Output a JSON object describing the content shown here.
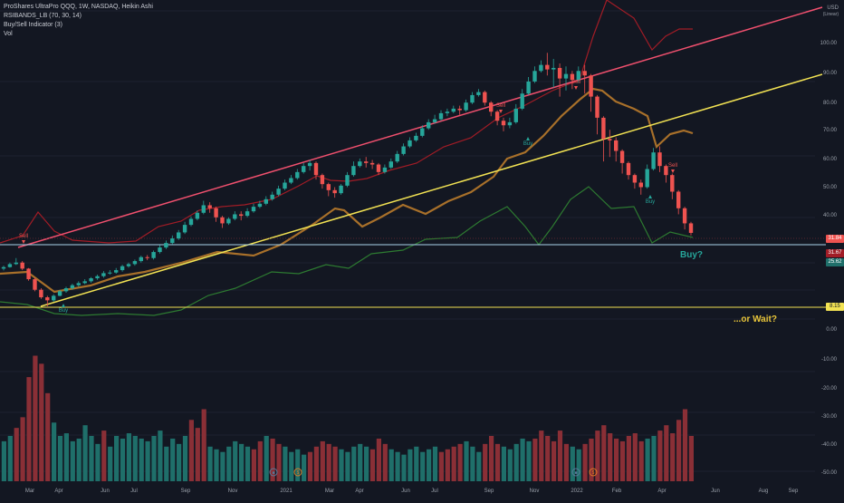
{
  "legend": {
    "line1": "ProShares UltraPro QQQ, 1W, NASDAQ, Heikin Ashi",
    "line2": "RSIBANDS_LB (70, 30, 14)",
    "line3": "Buy/Sell Indicator (3)",
    "line4": "Vol"
  },
  "annotations": {
    "buy": "Buy?",
    "wait": "...or Wait?"
  },
  "colors": {
    "background": "#131722",
    "up_candle": "#26a69a",
    "down_candle": "#ef5350",
    "upper_trend": "#f0506e",
    "lower_trend": "#f2e253",
    "band_high": "#a11c26",
    "band_mid": "#a8702a",
    "band_low": "#2d7a31",
    "support_line": "#a9d3ea",
    "volume_up": "#1f6f6a",
    "volume_down": "#8a2f36"
  },
  "chart_data": {
    "type": "candlestick",
    "x_tick_labels": [
      "Mar",
      "Apr",
      "Jun",
      "Jul",
      "Sep",
      "Nov",
      "2021",
      "Mar",
      "Apr",
      "Jun",
      "Jul",
      "Sep",
      "Nov",
      "2022",
      "Feb",
      "Apr",
      "Jun",
      "Aug",
      "Sep"
    ],
    "y_axis": {
      "unit_label": "USD",
      "scale_label": "(Linear)",
      "ticks": [
        "100.00",
        "90.00",
        "80.00",
        "70.00",
        "60.00",
        "50.00",
        "40.00",
        "8.15",
        "0.00",
        "-10.00",
        "-20.00",
        "-30.00",
        "-40.00",
        "-50.00"
      ]
    },
    "price_tags": [
      {
        "value": "8.15",
        "color": "#f2e253",
        "text_color": "#131722"
      },
      {
        "value": "31.84",
        "color": "#ef5350",
        "text_color": "#ffffff"
      },
      {
        "value": "31.67",
        "color": "#a11c26",
        "text_color": "#ffffff"
      },
      {
        "value": "25.62",
        "color": "#1f6f6a",
        "text_color": "#ffffff"
      }
    ],
    "signals": [
      {
        "label": "Sell",
        "type": "sell"
      },
      {
        "label": "Buy",
        "type": "buy"
      },
      {
        "label": "Sell",
        "type": "sell"
      },
      {
        "label": "Buy",
        "type": "buy"
      },
      {
        "label": "Sell",
        "type": "sell"
      },
      {
        "label": "Sell",
        "type": "sell"
      },
      {
        "label": "Buy",
        "type": "buy"
      }
    ],
    "candles": [
      [
        0,
        20.0,
        20.5,
        19.4,
        21.0
      ],
      [
        1,
        20.5,
        21.5,
        20.3,
        22.0
      ],
      [
        2,
        21.5,
        22.0,
        21.2,
        23.5
      ],
      [
        3,
        22.0,
        20.0,
        19.5,
        22.5
      ],
      [
        4,
        20.0,
        16.5,
        16.0,
        20.2
      ],
      [
        5,
        16.5,
        13.0,
        12.5,
        17.0
      ],
      [
        6,
        13.0,
        10.5,
        10.0,
        13.5
      ],
      [
        7,
        10.5,
        9.5,
        7.5,
        11.0
      ],
      [
        8,
        9.5,
        11.0,
        9.0,
        11.5
      ],
      [
        9,
        11.0,
        12.5,
        10.8,
        13.0
      ],
      [
        10,
        12.5,
        13.5,
        12.0,
        14.0
      ],
      [
        11,
        13.5,
        14.5,
        13.0,
        15.0
      ],
      [
        12,
        14.5,
        15.2,
        14.0,
        15.8
      ],
      [
        13,
        15.2,
        15.8,
        14.8,
        16.5
      ],
      [
        14,
        15.8,
        16.8,
        15.3,
        17.2
      ],
      [
        15,
        16.8,
        17.5,
        16.3,
        18.0
      ],
      [
        16,
        17.5,
        18.5,
        17.0,
        19.2
      ],
      [
        17,
        18.5,
        18.7,
        18.0,
        19.5
      ],
      [
        18,
        18.7,
        19.5,
        18.3,
        20.2
      ],
      [
        19,
        19.5,
        20.8,
        19.0,
        21.3
      ],
      [
        20,
        20.8,
        21.5,
        20.3,
        22.0
      ],
      [
        21,
        21.5,
        22.5,
        21.0,
        23.0
      ],
      [
        22,
        22.5,
        23.8,
        22.0,
        24.3
      ],
      [
        23,
        23.8,
        23.5,
        22.8,
        24.5
      ],
      [
        24,
        23.5,
        25.5,
        23.0,
        26.0
      ],
      [
        25,
        25.5,
        27.0,
        25.0,
        27.8
      ],
      [
        26,
        27.0,
        28.5,
        26.5,
        29.3
      ],
      [
        27,
        28.5,
        30.0,
        28.0,
        31.0
      ],
      [
        28,
        30.0,
        32.0,
        29.5,
        32.8
      ],
      [
        29,
        32.0,
        34.5,
        31.5,
        35.5
      ],
      [
        30,
        34.5,
        36.5,
        34.0,
        37.3
      ],
      [
        31,
        36.5,
        38.5,
        36.0,
        39.3
      ],
      [
        32,
        38.5,
        41.0,
        38.0,
        42.5
      ],
      [
        33,
        41.0,
        40.0,
        38.5,
        42.0
      ],
      [
        34,
        40.0,
        37.0,
        35.5,
        40.5
      ],
      [
        35,
        37.0,
        35.0,
        33.5,
        37.5
      ],
      [
        36,
        35.0,
        36.5,
        34.5,
        37.0
      ],
      [
        37,
        36.5,
        38.0,
        36.0,
        39.0
      ],
      [
        38,
        38.0,
        37.5,
        36.0,
        39.0
      ],
      [
        39,
        37.5,
        39.0,
        37.0,
        40.0
      ],
      [
        40,
        39.0,
        40.5,
        38.5,
        41.5
      ],
      [
        41,
        40.5,
        41.5,
        40.0,
        42.5
      ],
      [
        42,
        41.5,
        43.0,
        41.0,
        44.0
      ],
      [
        43,
        43.0,
        44.5,
        42.5,
        45.5
      ],
      [
        44,
        44.5,
        46.5,
        44.0,
        47.5
      ],
      [
        45,
        46.5,
        48.5,
        46.0,
        49.5
      ],
      [
        46,
        48.5,
        50.0,
        48.0,
        51.0
      ],
      [
        47,
        50.0,
        52.0,
        49.5,
        53.0
      ],
      [
        48,
        52.0,
        54.0,
        51.5,
        55.0
      ],
      [
        49,
        54.0,
        55.0,
        52.5,
        56.0
      ],
      [
        50,
        55.0,
        51.0,
        49.5,
        55.5
      ],
      [
        51,
        51.0,
        48.0,
        46.5,
        51.5
      ],
      [
        52,
        48.0,
        46.0,
        44.0,
        48.5
      ],
      [
        53,
        46.0,
        45.0,
        43.5,
        47.0
      ],
      [
        54,
        45.0,
        47.5,
        44.5,
        48.0
      ],
      [
        55,
        47.5,
        51.0,
        47.0,
        52.0
      ],
      [
        56,
        51.0,
        54.0,
        50.5,
        55.5
      ],
      [
        57,
        54.0,
        55.5,
        53.5,
        56.5
      ],
      [
        58,
        55.5,
        55.0,
        53.5,
        57.0
      ],
      [
        59,
        55.0,
        54.5,
        53.0,
        56.0
      ],
      [
        60,
        54.5,
        52.0,
        51.0,
        55.0
      ],
      [
        61,
        52.0,
        53.5,
        51.5,
        54.5
      ],
      [
        62,
        53.5,
        55.5,
        53.0,
        56.5
      ],
      [
        63,
        55.5,
        58.0,
        55.0,
        59.0
      ],
      [
        64,
        58.0,
        60.5,
        57.5,
        61.5
      ],
      [
        65,
        60.5,
        62.5,
        60.0,
        63.5
      ],
      [
        66,
        62.5,
        64.0,
        62.0,
        65.0
      ],
      [
        67,
        64.0,
        66.5,
        63.5,
        67.5
      ],
      [
        68,
        66.5,
        68.5,
        66.0,
        69.5
      ],
      [
        69,
        68.5,
        69.5,
        68.0,
        71.0
      ],
      [
        70,
        69.5,
        71.5,
        69.0,
        72.5
      ],
      [
        71,
        71.5,
        72.0,
        70.5,
        73.0
      ],
      [
        72,
        72.0,
        73.0,
        71.5,
        74.0
      ],
      [
        73,
        73.0,
        72.5,
        71.0,
        74.0
      ],
      [
        74,
        72.5,
        75.0,
        72.0,
        76.0
      ],
      [
        75,
        75.0,
        77.5,
        74.5,
        78.5
      ],
      [
        76,
        77.5,
        78.5,
        77.0,
        79.5
      ],
      [
        77,
        78.5,
        75.0,
        74.0,
        79.0
      ],
      [
        78,
        75.0,
        72.0,
        70.5,
        75.5
      ],
      [
        79,
        72.0,
        69.0,
        67.5,
        72.5
      ],
      [
        80,
        69.0,
        67.5,
        65.5,
        70.0
      ],
      [
        81,
        67.5,
        68.5,
        66.5,
        70.0
      ],
      [
        82,
        68.5,
        73.0,
        68.0,
        74.5
      ],
      [
        83,
        73.0,
        78.0,
        72.5,
        79.5
      ],
      [
        84,
        78.0,
        82.0,
        77.5,
        83.5
      ],
      [
        85,
        82.0,
        85.5,
        81.5,
        87.0
      ],
      [
        86,
        85.5,
        87.5,
        85.0,
        89.0
      ],
      [
        87,
        87.5,
        86.0,
        84.0,
        91.5
      ],
      [
        88,
        86.0,
        86.5,
        80.0,
        89.5
      ],
      [
        89,
        86.5,
        83.0,
        77.0,
        88.0
      ],
      [
        90,
        83.0,
        84.5,
        79.0,
        87.0
      ],
      [
        91,
        84.5,
        82.5,
        79.5,
        85.5
      ],
      [
        92,
        82.5,
        85.5,
        81.5,
        87.0
      ],
      [
        93,
        85.5,
        84.0,
        78.0,
        87.5
      ],
      [
        94,
        84.0,
        77.0,
        72.0,
        84.5
      ],
      [
        95,
        77.0,
        70.0,
        64.5,
        77.5
      ],
      [
        96,
        70.0,
        63.0,
        55.5,
        70.5
      ],
      [
        97,
        63.0,
        62.5,
        57.0,
        66.0
      ],
      [
        98,
        62.5,
        59.0,
        55.5,
        63.5
      ],
      [
        99,
        59.0,
        55.0,
        51.5,
        59.5
      ],
      [
        100,
        55.0,
        51.0,
        49.5,
        55.5
      ],
      [
        101,
        51.0,
        48.5,
        46.5,
        51.5
      ],
      [
        102,
        48.5,
        47.0,
        44.5,
        49.5
      ],
      [
        103,
        47.0,
        53.0,
        46.5,
        54.5
      ],
      [
        104,
        53.0,
        58.5,
        52.5,
        60.0
      ],
      [
        105,
        58.5,
        54.0,
        52.0,
        60.5
      ],
      [
        106,
        54.0,
        51.0,
        48.5,
        54.5
      ],
      [
        107,
        51.0,
        45.5,
        43.0,
        51.5
      ],
      [
        108,
        45.5,
        40.0,
        38.0,
        46.0
      ],
      [
        109,
        40.0,
        35.0,
        33.0,
        40.5
      ],
      [
        110,
        35.0,
        31.84,
        31.0,
        35.5
      ]
    ],
    "volume": [
      [
        0,
        -42,
        0
      ],
      [
        1,
        -40,
        0
      ],
      [
        2,
        -37,
        1
      ],
      [
        3,
        -33,
        1
      ],
      [
        4,
        -18,
        1
      ],
      [
        5,
        -10,
        1
      ],
      [
        6,
        -13,
        1
      ],
      [
        7,
        -24,
        1
      ],
      [
        8,
        -35,
        0
      ],
      [
        9,
        -40,
        0
      ],
      [
        10,
        -39,
        0
      ],
      [
        11,
        -42,
        0
      ],
      [
        12,
        -41,
        0
      ],
      [
        13,
        -36,
        0
      ],
      [
        14,
        -40,
        0
      ],
      [
        15,
        -43,
        0
      ],
      [
        16,
        -38,
        1
      ],
      [
        17,
        -44,
        0
      ],
      [
        18,
        -40,
        0
      ],
      [
        19,
        -41,
        0
      ],
      [
        20,
        -39,
        0
      ],
      [
        21,
        -40,
        0
      ],
      [
        22,
        -41,
        0
      ],
      [
        23,
        -42,
        0
      ],
      [
        24,
        -40,
        0
      ],
      [
        25,
        -38,
        0
      ],
      [
        26,
        -44,
        0
      ],
      [
        27,
        -41,
        0
      ],
      [
        28,
        -43,
        0
      ],
      [
        29,
        -40,
        0
      ],
      [
        30,
        -34,
        1
      ],
      [
        31,
        -37,
        1
      ],
      [
        32,
        -30,
        1
      ],
      [
        33,
        -44,
        0
      ],
      [
        34,
        -45,
        0
      ],
      [
        35,
        -46,
        0
      ],
      [
        36,
        -44,
        0
      ],
      [
        37,
        -42,
        0
      ],
      [
        38,
        -43,
        0
      ],
      [
        39,
        -44,
        0
      ],
      [
        40,
        -45,
        1
      ],
      [
        41,
        -42,
        1
      ],
      [
        42,
        -40,
        0
      ],
      [
        43,
        -41,
        1
      ],
      [
        44,
        -43,
        1
      ],
      [
        45,
        -44,
        0
      ],
      [
        46,
        -46,
        0
      ],
      [
        47,
        -45,
        0
      ],
      [
        48,
        -47,
        0
      ],
      [
        49,
        -46,
        1
      ],
      [
        50,
        -44,
        1
      ],
      [
        51,
        -42,
        1
      ],
      [
        52,
        -43,
        1
      ],
      [
        53,
        -44,
        1
      ],
      [
        54,
        -45,
        0
      ],
      [
        55,
        -46,
        0
      ],
      [
        56,
        -44,
        0
      ],
      [
        57,
        -43,
        0
      ],
      [
        58,
        -44,
        0
      ],
      [
        59,
        -45,
        1
      ],
      [
        60,
        -41,
        1
      ],
      [
        61,
        -43,
        1
      ],
      [
        62,
        -45,
        0
      ],
      [
        63,
        -46,
        0
      ],
      [
        64,
        -47,
        0
      ],
      [
        65,
        -45,
        0
      ],
      [
        66,
        -44,
        0
      ],
      [
        67,
        -46,
        0
      ],
      [
        68,
        -45,
        0
      ],
      [
        69,
        -44,
        0
      ],
      [
        70,
        -46,
        1
      ],
      [
        71,
        -45,
        1
      ],
      [
        72,
        -44,
        1
      ],
      [
        73,
        -43,
        1
      ],
      [
        74,
        -42,
        0
      ],
      [
        75,
        -44,
        0
      ],
      [
        76,
        -46,
        0
      ],
      [
        77,
        -43,
        1
      ],
      [
        78,
        -40,
        1
      ],
      [
        79,
        -43,
        1
      ],
      [
        80,
        -44,
        0
      ],
      [
        81,
        -45,
        0
      ],
      [
        82,
        -43,
        0
      ],
      [
        83,
        -41,
        0
      ],
      [
        84,
        -42,
        0
      ],
      [
        85,
        -41,
        1
      ],
      [
        86,
        -38,
        1
      ],
      [
        87,
        -40,
        1
      ],
      [
        88,
        -42,
        1
      ],
      [
        89,
        -38,
        1
      ],
      [
        90,
        -43,
        1
      ],
      [
        91,
        -44,
        0
      ],
      [
        92,
        -45,
        0
      ],
      [
        93,
        -43,
        1
      ],
      [
        94,
        -41,
        1
      ],
      [
        95,
        -38,
        1
      ],
      [
        96,
        -36,
        1
      ],
      [
        97,
        -39,
        1
      ],
      [
        98,
        -41,
        1
      ],
      [
        99,
        -42,
        1
      ],
      [
        100,
        -40,
        1
      ],
      [
        101,
        -39,
        1
      ],
      [
        102,
        -42,
        1
      ],
      [
        103,
        -41,
        0
      ],
      [
        104,
        -40,
        0
      ],
      [
        105,
        -38,
        1
      ],
      [
        106,
        -36,
        1
      ],
      [
        107,
        -39,
        1
      ],
      [
        108,
        -34,
        1
      ],
      [
        109,
        -30,
        1
      ],
      [
        110,
        -40,
        1
      ]
    ]
  }
}
